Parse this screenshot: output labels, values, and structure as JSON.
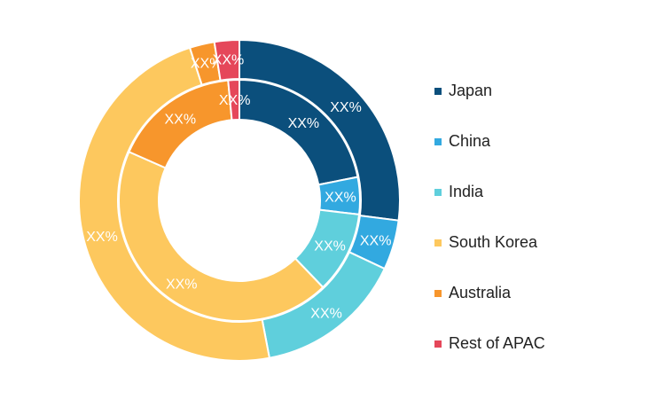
{
  "chart_data": {
    "type": "pie",
    "variant": "nested-donut",
    "categories": [
      "Japan",
      "China",
      "India",
      "South Korea",
      "Australia",
      "Rest of APAC"
    ],
    "colors": [
      "#0b4f7c",
      "#32a9e0",
      "#5fcfdc",
      "#fdc85e",
      "#f7962c",
      "#e5475a"
    ],
    "series": [
      {
        "values": [
          27,
          5,
          15,
          48,
          2.5,
          2.5
        ],
        "slice_labels": [
          "XX%",
          "XX%",
          "XX%",
          "XX%",
          "XX%",
          "XX%"
        ]
      },
      {
        "values": [
          22,
          5,
          11,
          44,
          17,
          1.5
        ],
        "slice_labels": [
          "XX%",
          "XX%",
          "XX%",
          "XX%",
          "XX%",
          "XX%"
        ]
      }
    ],
    "title": "",
    "legend": "right"
  }
}
